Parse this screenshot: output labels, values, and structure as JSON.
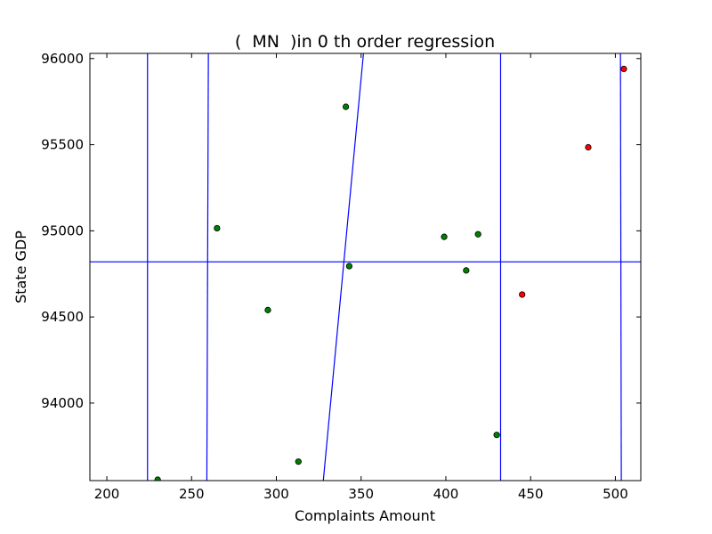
{
  "chart_data": {
    "type": "scatter",
    "title": "(  MN  )in 0 th order regression",
    "xlabel": "Complaints Amount",
    "ylabel": "State GDP",
    "xlim": [
      190,
      515
    ],
    "ylim": [
      93550,
      96030
    ],
    "x_ticks": [
      200,
      250,
      300,
      350,
      400,
      450,
      500
    ],
    "y_ticks": [
      94000,
      94500,
      95000,
      95500,
      96000
    ],
    "x_tick_labels": [
      "200",
      "250",
      "300",
      "350",
      "400",
      "450",
      "500"
    ],
    "y_tick_labels": [
      "94000",
      "94500",
      "95000",
      "95500",
      "96000"
    ],
    "grid": false,
    "legend": "none",
    "colors": {
      "green": "#008000",
      "red": "#ff0000",
      "line": "#0000ff"
    },
    "series": [
      {
        "color": "green",
        "points": [
          {
            "x": 230,
            "y": 93555
          },
          {
            "x": 265,
            "y": 95015
          },
          {
            "x": 295,
            "y": 94540
          },
          {
            "x": 313,
            "y": 93660
          },
          {
            "x": 341,
            "y": 95720
          },
          {
            "x": 343,
            "y": 94795
          },
          {
            "x": 399,
            "y": 94965
          },
          {
            "x": 412,
            "y": 94770
          },
          {
            "x": 419,
            "y": 94980
          },
          {
            "x": 430,
            "y": 93815
          }
        ]
      },
      {
        "color": "red",
        "points": [
          {
            "x": 445,
            "y": 94630
          },
          {
            "x": 484,
            "y": 95485
          },
          {
            "x": 505,
            "y": 95940
          }
        ]
      }
    ],
    "regression_lines": [
      {
        "x1": 224.0,
        "y1": 93550,
        "x2": 224.0,
        "y2": 96030
      },
      {
        "x1": 259.0,
        "y1": 93550,
        "x2": 259.9,
        "y2": 96030
      },
      {
        "x1": 327.7,
        "y1": 93550,
        "x2": 351.4,
        "y2": 96030
      },
      {
        "x1": 432.3,
        "y1": 93550,
        "x2": 432.3,
        "y2": 96030
      },
      {
        "x1": 503.5,
        "y1": 93550,
        "x2": 503.0,
        "y2": 96030
      },
      {
        "x1": 190,
        "y1": 94820,
        "x2": 515,
        "y2": 94820
      }
    ]
  }
}
